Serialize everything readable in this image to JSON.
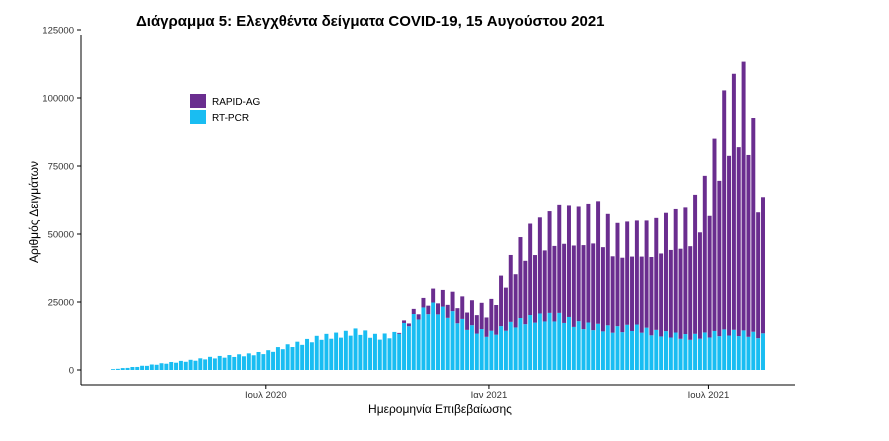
{
  "chart_data": {
    "type": "bar",
    "stacked": true,
    "title": "Διάγραμμα 5: Ελεγχθέντα δείγματα COVID-19, 15 Αυγούστου 2021",
    "xlabel": "Ημερομηνία Επιβεβαίωσης",
    "ylabel": "Αριθμός Δειγμάτων",
    "xlim": [
      "2020-02-26",
      "2021-08-15"
    ],
    "ylim": [
      0,
      125000
    ],
    "x_ticks": [
      {
        "date": "2020-07-01",
        "label": "Ιουλ 2020"
      },
      {
        "date": "2021-01-01",
        "label": "Ιαν 2021"
      },
      {
        "date": "2021-07-01",
        "label": "Ιουλ 2021"
      }
    ],
    "y_ticks": [
      0,
      25000,
      50000,
      75000,
      100000,
      125000
    ],
    "y_tick_labels": [
      "0",
      "25000",
      "50000",
      "75000",
      "100000",
      "125000"
    ],
    "grid": false,
    "legend_position": "top-left",
    "colors": {
      "RAPID-AG": "#6a2d8f",
      "RT-PCR": "#19bdf2"
    },
    "series": [
      {
        "name": "RT-PCR",
        "x": [
          "2020-02-26",
          "2020-03-15",
          "2020-04-01",
          "2020-04-15",
          "2020-05-01",
          "2020-05-15",
          "2020-06-01",
          "2020-06-15",
          "2020-07-01",
          "2020-07-15",
          "2020-08-01",
          "2020-08-15",
          "2020-09-01",
          "2020-09-15",
          "2020-10-01",
          "2020-10-15",
          "2020-11-01",
          "2020-11-15",
          "2020-12-01",
          "2020-12-15",
          "2021-01-01",
          "2021-01-15",
          "2021-02-01",
          "2021-02-15",
          "2021-03-01",
          "2021-03-15",
          "2021-04-01",
          "2021-04-15",
          "2021-05-01",
          "2021-05-15",
          "2021-06-01",
          "2021-06-15",
          "2021-07-01",
          "2021-07-15",
          "2021-08-01",
          "2021-08-15"
        ],
        "values": [
          300,
          1200,
          2200,
          3000,
          3800,
          4800,
          5500,
          6000,
          7000,
          9000,
          11000,
          13000,
          14000,
          15500,
          13000,
          14000,
          21000,
          25000,
          22000,
          17000,
          14000,
          17000,
          20000,
          21000,
          21000,
          18000,
          17000,
          16000,
          17000,
          15000,
          14000,
          13000,
          14000,
          15000,
          14500,
          13500
        ]
      },
      {
        "name": "RAPID-AG",
        "x": [
          "2020-02-26",
          "2020-03-15",
          "2020-04-01",
          "2020-04-15",
          "2020-05-01",
          "2020-05-15",
          "2020-06-01",
          "2020-06-15",
          "2020-07-01",
          "2020-07-15",
          "2020-08-01",
          "2020-08-15",
          "2020-09-01",
          "2020-09-15",
          "2020-10-01",
          "2020-10-15",
          "2020-11-01",
          "2020-11-15",
          "2020-12-01",
          "2020-12-15",
          "2021-01-01",
          "2021-01-15",
          "2021-02-01",
          "2021-02-15",
          "2021-03-01",
          "2021-03-15",
          "2021-04-01",
          "2021-04-15",
          "2021-05-01",
          "2021-05-15",
          "2021-06-01",
          "2021-06-15",
          "2021-07-01",
          "2021-07-15",
          "2021-08-01",
          "2021-08-15"
        ],
        "values": [
          0,
          0,
          0,
          0,
          0,
          0,
          0,
          0,
          0,
          0,
          0,
          0,
          0,
          0,
          0,
          0,
          2000,
          5000,
          7000,
          9000,
          10000,
          22000,
          33000,
          36000,
          40000,
          42000,
          45000,
          38000,
          38000,
          40000,
          45000,
          47000,
          60000,
          90000,
          100000,
          50000
        ]
      }
    ]
  }
}
